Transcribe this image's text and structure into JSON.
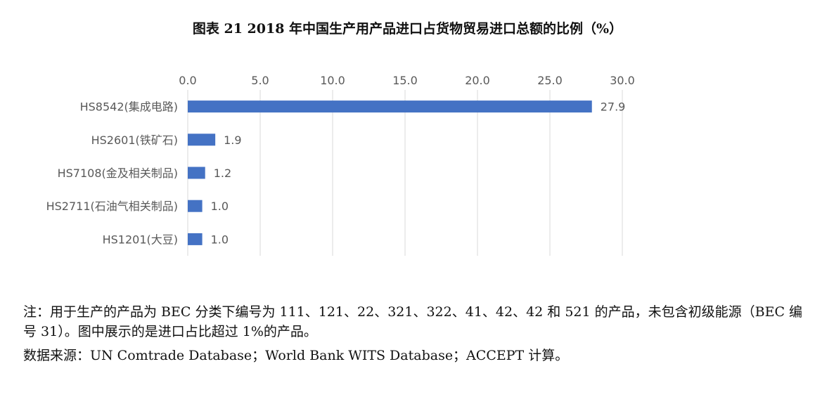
{
  "title": "图表 21  2018 年中国生产用产品进口占货物贸易进口总额的比例（%）",
  "chart_data": {
    "type": "bar",
    "orientation": "horizontal",
    "categories": [
      "HS8542(集成电路)",
      "HS2601(铁矿石)",
      "HS7108(金及相关制品)",
      "HS2711(石油气相关制品)",
      "HS1201(大豆)"
    ],
    "values": [
      27.9,
      1.9,
      1.2,
      1.0,
      1.0
    ],
    "value_labels": [
      "27.9",
      "1.9",
      "1.2",
      "1.0",
      "1.0"
    ],
    "xlim": [
      0,
      30
    ],
    "x_ticks": [
      "0.0",
      "5.0",
      "10.0",
      "15.0",
      "20.0",
      "25.0",
      "30.0"
    ],
    "x_axis_position": "top",
    "grid": true,
    "legend": "none",
    "bar_color": "#4472C4"
  },
  "notes": {
    "note": "注：用于生产的产品为 BEC 分类下编号为 111、121、22、321、322、41、42、42 和 521 的产品，未包含初级能源（BEC 编号 31）。图中展示的是进口占比超过 1%的产品。",
    "source": "数据来源：UN Comtrade Database；World Bank WITS Database；ACCEPT 计算。"
  }
}
